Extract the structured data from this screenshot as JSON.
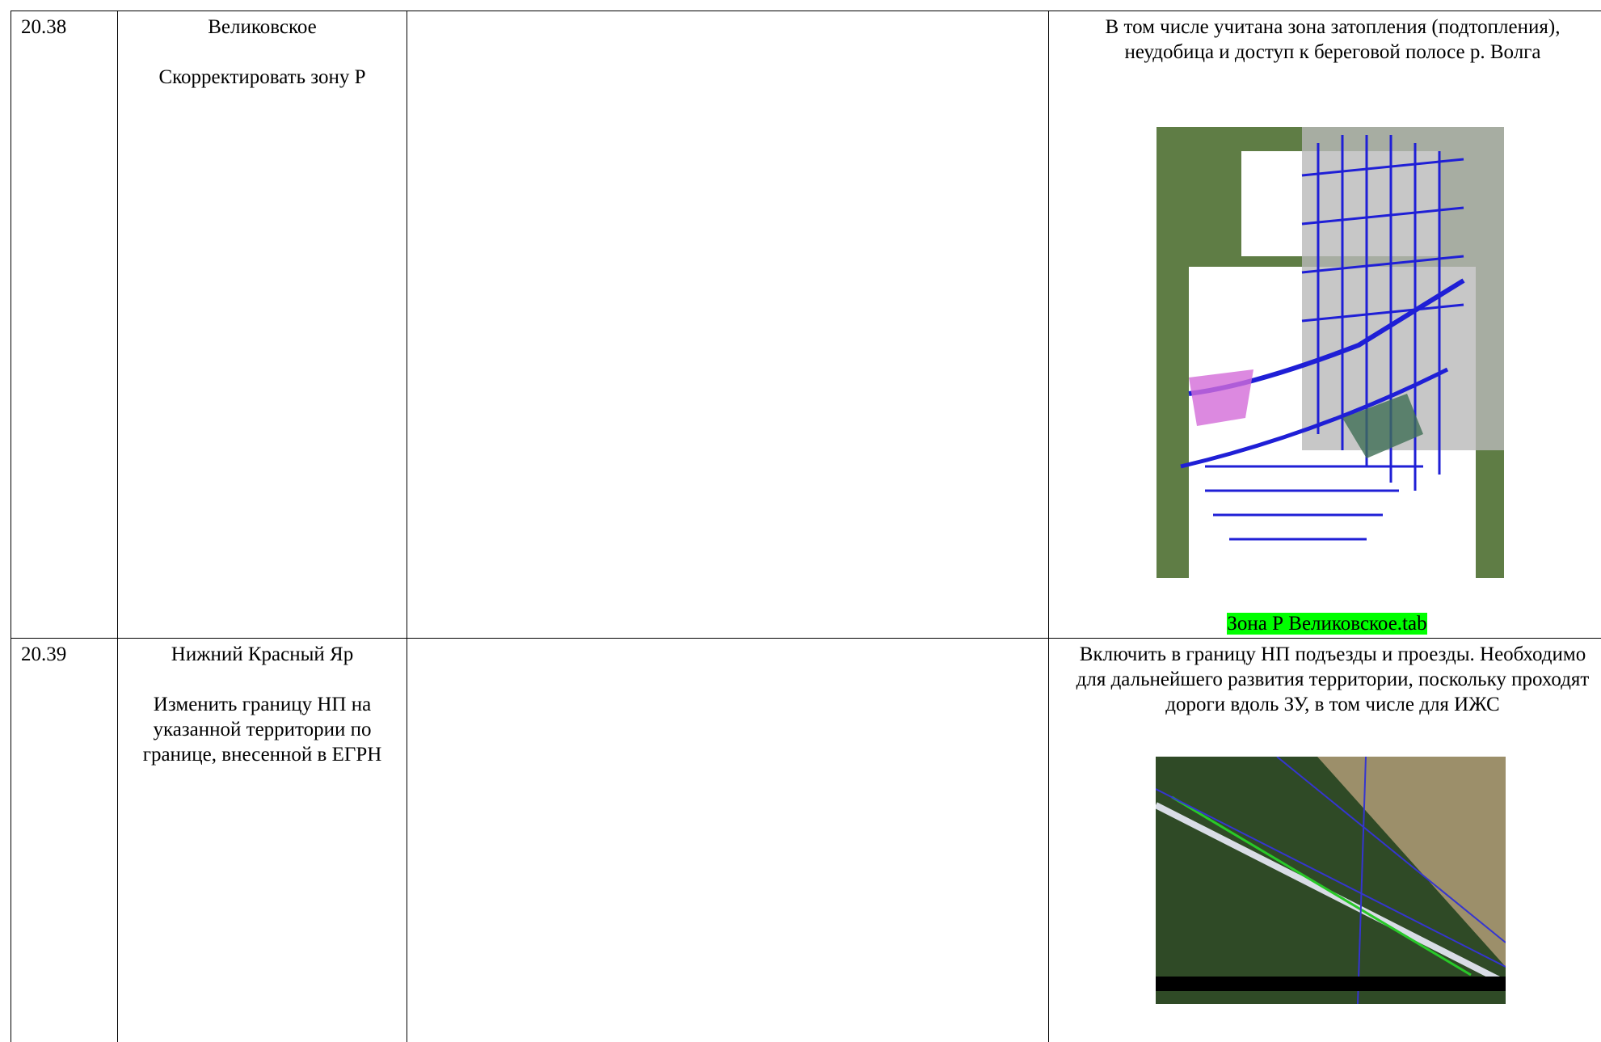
{
  "table": {
    "rows": [
      {
        "number": "20.38",
        "place": "Великовское",
        "request": "Скорректировать зону Р",
        "note": "В том числе учитана зона затопления (подтопления), неудобица и доступ к береговой полосе р. Волга",
        "attachment": "Зона Р Великовское.tab"
      },
      {
        "number": "20.39",
        "place": "Нижний Красный Яр",
        "request": "Изменить границу НП на указанной территории по границе, внесенной в ЕГРН",
        "note": "Включить в границу НП подъезды и проезды. Необходимо для дальнейшего развития территории, поскольку проходят дороги вдоль ЗУ, в том числе для ИЖС"
      }
    ]
  }
}
